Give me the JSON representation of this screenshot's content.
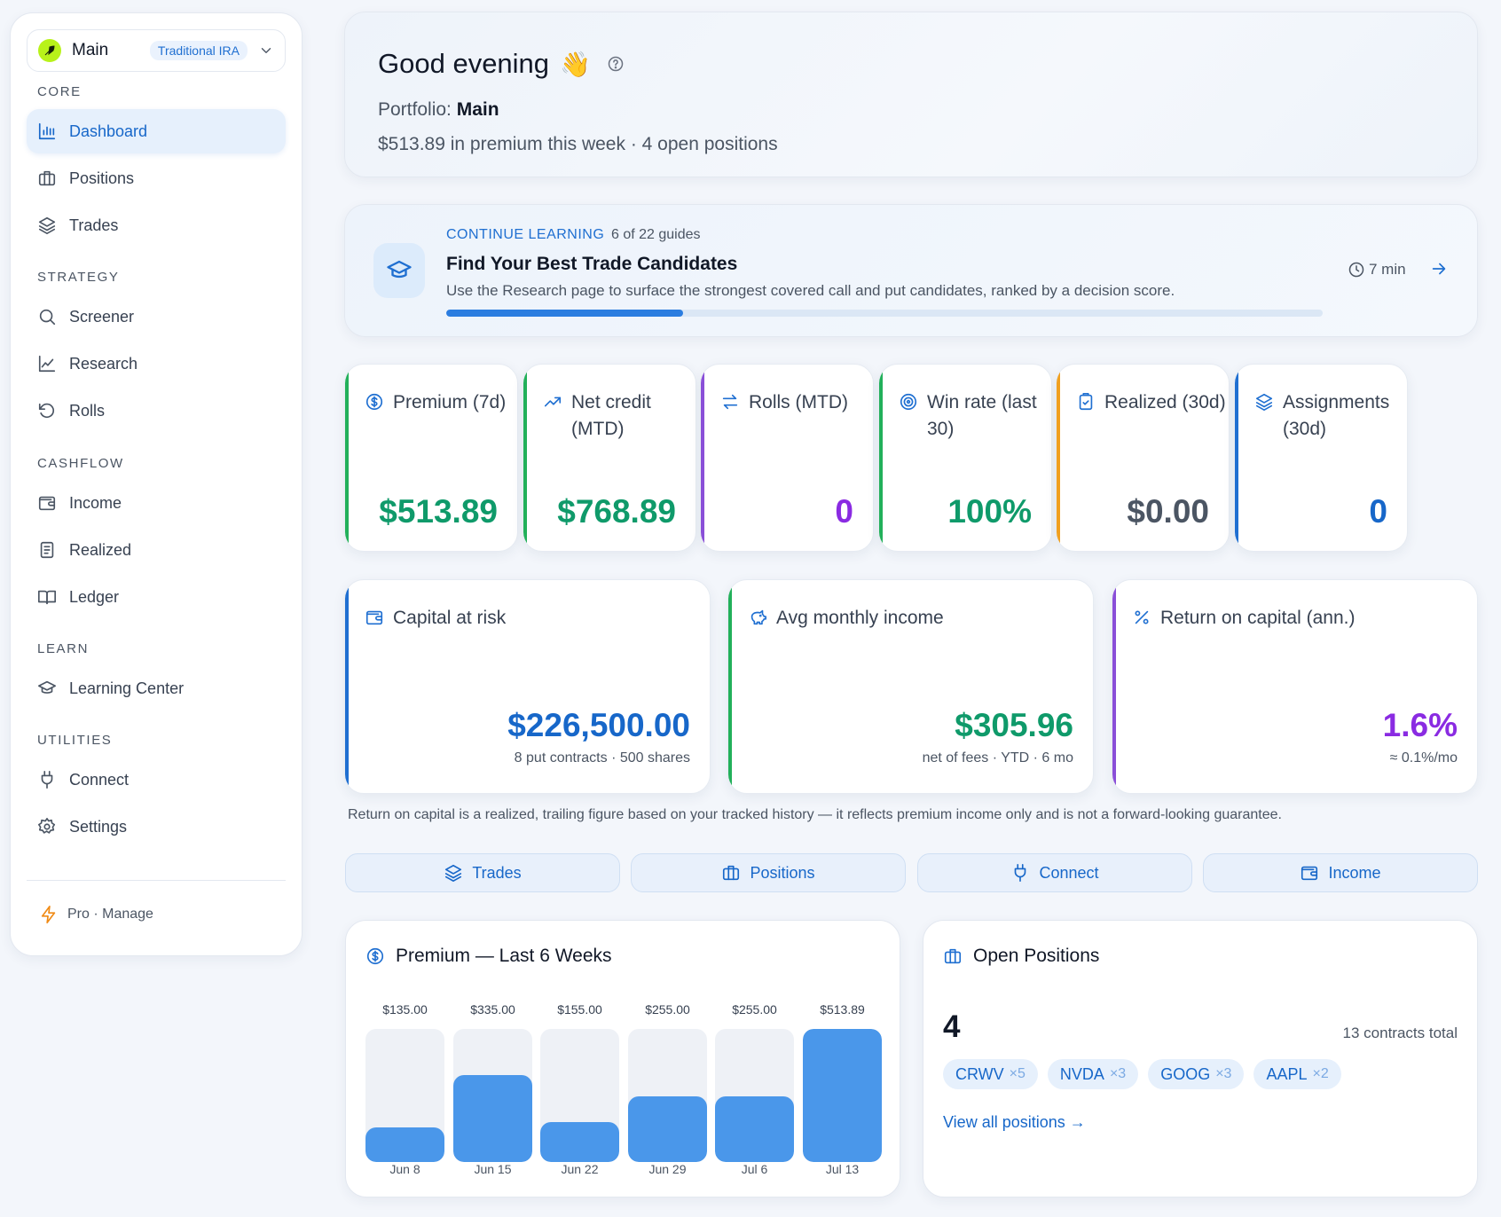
{
  "sidebar": {
    "portfolio": {
      "name": "Main",
      "badge": "Traditional IRA"
    },
    "sections": {
      "core": "CORE",
      "strategy": "STRATEGY",
      "cashflow": "CASHFLOW",
      "learn": "LEARN",
      "utilities": "UTILITIES"
    },
    "items": {
      "dashboard": "Dashboard",
      "positions": "Positions",
      "trades": "Trades",
      "screener": "Screener",
      "research": "Research",
      "rolls": "Rolls",
      "income": "Income",
      "realized": "Realized",
      "ledger": "Ledger",
      "learning_center": "Learning Center",
      "connect": "Connect",
      "settings": "Settings"
    },
    "pro": "Pro · Manage"
  },
  "greeting": {
    "title": "Good evening",
    "emoji": "👋",
    "portfolio_label": "Portfolio: ",
    "portfolio_name": "Main",
    "summary": "$513.89 in premium this week · 4 open positions"
  },
  "learning": {
    "kicker": "CONTINUE LEARNING",
    "progress_text": "6 of 22 guides",
    "progress_fraction": 0.27,
    "title": "Find Your Best Trade Candidates",
    "description": "Use the Research page to surface the strongest covered call and put candidates, ranked by a decision score.",
    "duration": "7 min"
  },
  "stats": [
    {
      "label": "Premium (7d)",
      "value": "$513.89",
      "color": "#0f9a6a",
      "stripe": "#22b05a",
      "icon": "dollar-circle-icon"
    },
    {
      "label": "Net credit (MTD)",
      "value": "$768.89",
      "color": "#0f9a6a",
      "stripe": "#22b05a",
      "icon": "trending-up-icon"
    },
    {
      "label": "Rolls (MTD)",
      "value": "0",
      "color": "#8a2be2",
      "stripe": "#8a4fd8",
      "icon": "arrows-swap-icon"
    },
    {
      "label": "Win rate (last 30)",
      "value": "100%",
      "color": "#0f9a6a",
      "stripe": "#22b05a",
      "icon": "target-icon"
    },
    {
      "label": "Realized (30d)",
      "value": "$0.00",
      "color": "#4b5563",
      "stripe": "#f0a020",
      "icon": "clipboard-check-icon"
    },
    {
      "label": "Assignments (30d)",
      "value": "0",
      "color": "#1767c9",
      "stripe": "#1f6fd1",
      "icon": "layers-icon"
    }
  ],
  "big_stats": [
    {
      "label": "Capital at risk",
      "value": "$226,500.00",
      "sub": "8 put contracts · 500 shares",
      "color": "#1767c9",
      "stripe": "#1f6fd1",
      "icon": "wallet-icon"
    },
    {
      "label": "Avg monthly income",
      "value": "$305.96",
      "sub": "net of fees · YTD · 6 mo",
      "color": "#0f9a6a",
      "stripe": "#22b05a",
      "icon": "piggy-bank-icon"
    },
    {
      "label": "Return on capital (ann.)",
      "value": "1.6%",
      "sub": "≈ 0.1%/mo",
      "color": "#8a2be2",
      "stripe": "#8a4fd8",
      "icon": "percent-icon"
    }
  ],
  "footnote": "Return on capital is a realized, trailing figure based on your tracked history — it reflects premium income only and is not a forward-looking guarantee.",
  "quick_links": {
    "trades": "Trades",
    "positions": "Positions",
    "connect": "Connect",
    "income": "Income"
  },
  "premium_panel": {
    "title": "Premium — Last 6 Weeks"
  },
  "chart_data": {
    "type": "bar",
    "title": "Premium — Last 6 Weeks",
    "categories": [
      "Jun 8",
      "Jun 15",
      "Jun 22",
      "Jun 29",
      "Jul 6",
      "Jul 13"
    ],
    "values": [
      135.0,
      335.0,
      155.0,
      255.0,
      255.0,
      513.89
    ],
    "value_labels": [
      "$135.00",
      "$335.00",
      "$155.00",
      "$255.00",
      "$255.00",
      "$513.89"
    ],
    "ylim": [
      0,
      513.89
    ],
    "xlabel": "",
    "ylabel": "",
    "grid": false,
    "bar_color": "#4a97ea",
    "track_color": "#eef1f6"
  },
  "open_positions": {
    "title": "Open Positions",
    "count": "4",
    "total": "13 contracts total",
    "chips": [
      {
        "ticker": "CRWV",
        "mult": "×5"
      },
      {
        "ticker": "NVDA",
        "mult": "×3"
      },
      {
        "ticker": "GOOG",
        "mult": "×3"
      },
      {
        "ticker": "AAPL",
        "mult": "×2"
      }
    ],
    "link": "View all positions →"
  }
}
